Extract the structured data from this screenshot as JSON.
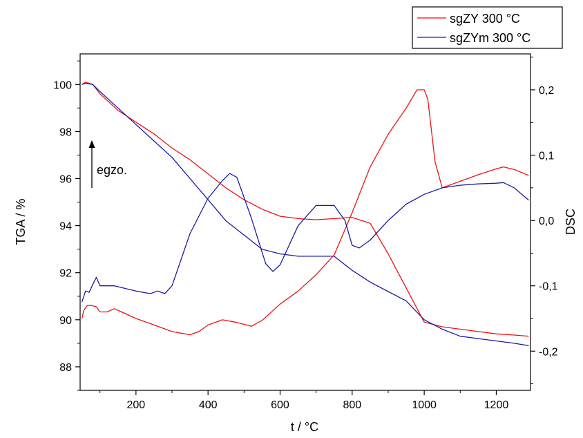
{
  "chart_data": {
    "type": "line",
    "xlabel": "t / °C",
    "ylabel_left": "TGA / %",
    "ylabel_right": "DSC",
    "xlim": [
      45,
      1295
    ],
    "ylim_left": [
      87,
      101.3
    ],
    "ylim_right": [
      -0.26,
      0.255
    ],
    "x_ticks": [
      200,
      400,
      600,
      800,
      1000,
      1200
    ],
    "y_left_ticks": [
      88,
      90,
      92,
      94,
      96,
      98,
      100
    ],
    "y_right_ticks": [
      "0,2",
      "0,1",
      "0,0",
      "-0,1",
      "-0,2"
    ],
    "y_right_tick_values": [
      0.2,
      0.1,
      0.0,
      -0.1,
      -0.2
    ],
    "grid": false,
    "legend_position": "top-right, outside plot",
    "annotation": {
      "text": "egzo.",
      "arrow": "up"
    },
    "series": [
      {
        "name": "sgZY 300 °C",
        "color": "#ee1111",
        "axis": "left",
        "x": [
          50,
          60,
          80,
          100,
          150,
          200,
          250,
          300,
          350,
          400,
          450,
          500,
          550,
          600,
          650,
          700,
          750,
          800,
          850,
          900,
          1000,
          1050,
          1100,
          1150,
          1200,
          1250,
          1290
        ],
        "y": [
          100.0,
          100.1,
          100.0,
          99.6,
          98.9,
          98.4,
          97.9,
          97.3,
          96.8,
          96.2,
          95.6,
          95.1,
          94.7,
          94.4,
          94.3,
          94.25,
          94.3,
          94.35,
          94.1,
          92.8,
          89.9,
          89.7,
          89.6,
          89.5,
          89.4,
          89.35,
          89.3
        ]
      },
      {
        "name": "sgZYm 300 °C",
        "color": "#1a1aa6",
        "axis": "left",
        "x": [
          50,
          60,
          80,
          100,
          150,
          200,
          250,
          300,
          350,
          400,
          450,
          500,
          550,
          600,
          650,
          700,
          750,
          800,
          850,
          900,
          950,
          1000,
          1050,
          1100,
          1150,
          1200,
          1250,
          1290
        ],
        "y": [
          100.0,
          100.05,
          100.0,
          99.7,
          99.0,
          98.3,
          97.6,
          96.9,
          96.0,
          95.1,
          94.2,
          93.6,
          93.0,
          92.8,
          92.7,
          92.7,
          92.7,
          92.1,
          91.6,
          91.2,
          90.8,
          90.0,
          89.6,
          89.3,
          89.2,
          89.1,
          89.0,
          88.9
        ]
      },
      {
        "name": "sgZY 300 °C",
        "color": "#ee1111",
        "axis": "right",
        "x": [
          50,
          55,
          65,
          75,
          90,
          100,
          120,
          140,
          160,
          200,
          250,
          300,
          350,
          375,
          400,
          440,
          480,
          520,
          550,
          600,
          650,
          700,
          750,
          800,
          850,
          900,
          950,
          980,
          1000,
          1010,
          1030,
          1050,
          1100,
          1150,
          1200,
          1220,
          1250,
          1290
        ],
        "y": [
          -0.15,
          -0.138,
          -0.13,
          -0.13,
          -0.132,
          -0.14,
          -0.14,
          -0.135,
          -0.14,
          -0.15,
          -0.16,
          -0.17,
          -0.175,
          -0.17,
          -0.16,
          -0.152,
          -0.156,
          -0.162,
          -0.153,
          -0.128,
          -0.108,
          -0.083,
          -0.053,
          0.012,
          0.082,
          0.132,
          0.172,
          0.2,
          0.2,
          0.186,
          0.09,
          0.05,
          0.06,
          0.07,
          0.079,
          0.082,
          0.078,
          0.069
        ]
      },
      {
        "name": "sgZYm 300 °C",
        "color": "#1a1aa6",
        "axis": "right",
        "x": [
          50,
          60,
          70,
          80,
          90,
          100,
          140,
          200,
          240,
          260,
          280,
          300,
          350,
          400,
          440,
          460,
          480,
          520,
          560,
          580,
          600,
          650,
          700,
          750,
          780,
          800,
          820,
          850,
          900,
          950,
          1000,
          1050,
          1100,
          1150,
          1200,
          1220,
          1250,
          1290
        ],
        "y": [
          -0.125,
          -0.108,
          -0.11,
          -0.098,
          -0.087,
          -0.1,
          -0.1,
          -0.108,
          -0.112,
          -0.108,
          -0.112,
          -0.1,
          -0.02,
          0.034,
          0.061,
          0.072,
          0.066,
          0.004,
          -0.066,
          -0.078,
          -0.068,
          -0.008,
          0.023,
          0.023,
          0.0,
          -0.038,
          -0.042,
          -0.03,
          0.0,
          0.025,
          0.04,
          0.05,
          0.054,
          0.056,
          0.057,
          0.058,
          0.05,
          0.031
        ]
      }
    ]
  }
}
